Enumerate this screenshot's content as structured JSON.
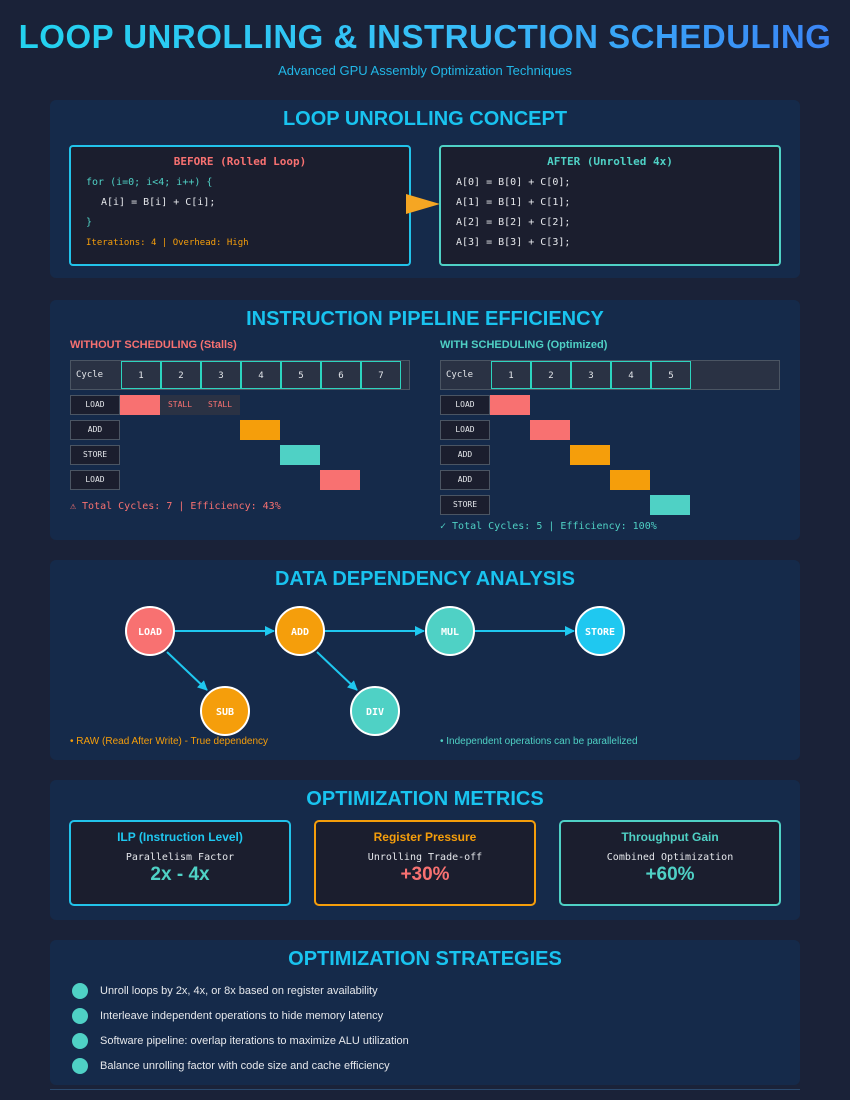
{
  "header": {
    "title": "LOOP UNROLLING & INSTRUCTION SCHEDULING",
    "subtitle": "Advanced GPU Assembly Optimization Techniques"
  },
  "concept": {
    "title": "LOOP UNROLLING CONCEPT",
    "before": {
      "heading": "BEFORE (Rolled Loop)",
      "lines": [
        "for (i=0; i<4; i++) {",
        "A[i] = B[i] + C[i];",
        "}"
      ],
      "note": "Iterations: 4 | Overhead: High"
    },
    "after": {
      "heading": "AFTER (Unrolled 4x)",
      "lines": [
        "A[0] = B[0] + C[0];",
        "A[1] = B[1] + C[1];",
        "A[2] = B[2] + C[2];",
        "A[3] = B[3] + C[3];"
      ]
    }
  },
  "pipeline": {
    "title": "INSTRUCTION PIPELINE EFFICIENCY",
    "without": {
      "label": "WITHOUT SCHEDULING (Stalls)",
      "cycle_label": "Cycle",
      "cycles": [
        "1",
        "2",
        "3",
        "4",
        "5",
        "6",
        "7"
      ],
      "rows": [
        {
          "name": "LOAD",
          "start": 1,
          "color": "#f87171"
        },
        {
          "name": "ADD",
          "start": 4,
          "color": "#f59e0b"
        },
        {
          "name": "STORE",
          "start": 5,
          "color": "#4fd1c5"
        },
        {
          "name": "LOAD",
          "start": 6,
          "color": "#f87171"
        }
      ],
      "stall_label": "STALL",
      "summary": "⚠ Total Cycles: 7 | Efficiency: 43%"
    },
    "with": {
      "label": "WITH SCHEDULING (Optimized)",
      "cycle_label": "Cycle",
      "cycles": [
        "1",
        "2",
        "3",
        "4",
        "5"
      ],
      "rows": [
        {
          "name": "LOAD",
          "start": 1,
          "color": "#f87171"
        },
        {
          "name": "LOAD",
          "start": 2,
          "color": "#f87171"
        },
        {
          "name": "ADD",
          "start": 3,
          "color": "#f59e0b"
        },
        {
          "name": "ADD",
          "start": 4,
          "color": "#f59e0b"
        },
        {
          "name": "STORE",
          "start": 5,
          "color": "#4fd1c5"
        }
      ],
      "summary": "✓ Total Cycles: 5 | Efficiency: 100%"
    }
  },
  "dependency": {
    "title": "DATA DEPENDENCY ANALYSIS",
    "nodes": [
      "LOAD",
      "ADD",
      "MUL",
      "STORE",
      "SUB",
      "DIV"
    ],
    "note_left": "• RAW (Read After Write) - True dependency",
    "note_right": "• Independent operations can be parallelized"
  },
  "metrics": {
    "title": "OPTIMIZATION METRICS",
    "cards": [
      {
        "title": "ILP (Instruction Level)",
        "sub": "Parallelism Factor",
        "value": "2x - 4x"
      },
      {
        "title": "Register Pressure",
        "sub": "Unrolling Trade-off",
        "value": "+30%"
      },
      {
        "title": "Throughput Gain",
        "sub": "Combined Optimization",
        "value": "+60%"
      }
    ]
  },
  "strategies": {
    "title": "OPTIMIZATION STRATEGIES",
    "items": [
      "Unroll loops by 2x, 4x, or 8x based on register availability",
      "Interleave independent operations to hide memory latency",
      "Software pipeline: overlap iterations to maximize ALU utilization",
      "Balance unrolling factor with code size and cache efficiency"
    ]
  },
  "colors": {
    "accent": "#19c3ef",
    "red": "#f87171",
    "orange": "#f59e0b",
    "teal": "#4fd1c5",
    "background": "#1a2238",
    "panel": "#152a4a"
  }
}
